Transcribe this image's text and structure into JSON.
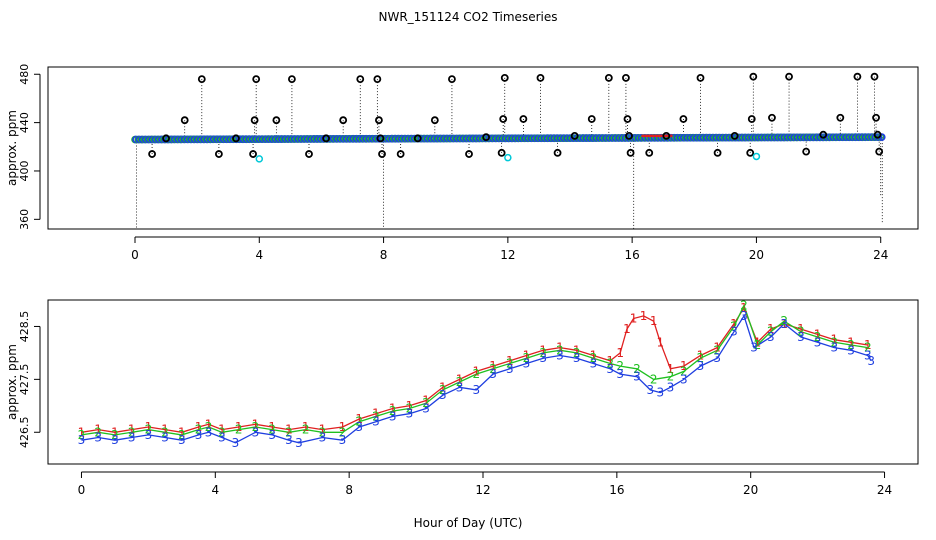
{
  "chart_data": [
    {
      "type": "scatter",
      "panel": "top",
      "title": "NWR_151124  CO2 Timeseries",
      "ylabel": "approx. ppm",
      "xlim": [
        -2.8,
        25.2
      ],
      "ylim": [
        352,
        486
      ],
      "xticks": [
        0,
        4,
        8,
        12,
        16,
        20,
        24
      ],
      "yticks": [
        360,
        400,
        440,
        480
      ],
      "baseline": {
        "t0": 0,
        "t1": 24,
        "v0": 426,
        "v1": 428
      },
      "spikes": [
        {
          "t": 0.55,
          "v": 414
        },
        {
          "t": 1.0,
          "v": 427
        },
        {
          "t": 1.6,
          "v": 442
        },
        {
          "t": 2.15,
          "v": 476
        },
        {
          "t": 2.7,
          "v": 414
        },
        {
          "t": 3.25,
          "v": 427
        },
        {
          "t": 3.8,
          "v": 414
        },
        {
          "t": 3.85,
          "v": 442
        },
        {
          "t": 3.9,
          "v": 476
        },
        {
          "t": 4.55,
          "v": 442
        },
        {
          "t": 5.05,
          "v": 476
        },
        {
          "t": 5.6,
          "v": 414
        },
        {
          "t": 6.15,
          "v": 427
        },
        {
          "t": 6.7,
          "v": 442
        },
        {
          "t": 7.25,
          "v": 476
        },
        {
          "t": 7.8,
          "v": 476
        },
        {
          "t": 7.85,
          "v": 442
        },
        {
          "t": 7.9,
          "v": 427
        },
        {
          "t": 7.95,
          "v": 414
        },
        {
          "t": 8.55,
          "v": 414
        },
        {
          "t": 9.1,
          "v": 427
        },
        {
          "t": 9.65,
          "v": 442
        },
        {
          "t": 10.2,
          "v": 476
        },
        {
          "t": 10.75,
          "v": 414
        },
        {
          "t": 11.3,
          "v": 428
        },
        {
          "t": 11.8,
          "v": 415
        },
        {
          "t": 11.85,
          "v": 443
        },
        {
          "t": 11.9,
          "v": 477
        },
        {
          "t": 12.5,
          "v": 443
        },
        {
          "t": 13.05,
          "v": 477
        },
        {
          "t": 13.6,
          "v": 415
        },
        {
          "t": 14.15,
          "v": 429
        },
        {
          "t": 14.7,
          "v": 443
        },
        {
          "t": 15.25,
          "v": 477
        },
        {
          "t": 15.8,
          "v": 477
        },
        {
          "t": 15.85,
          "v": 443
        },
        {
          "t": 15.9,
          "v": 429
        },
        {
          "t": 15.95,
          "v": 415
        },
        {
          "t": 16.55,
          "v": 415
        },
        {
          "t": 17.1,
          "v": 429
        },
        {
          "t": 17.65,
          "v": 443
        },
        {
          "t": 18.2,
          "v": 477
        },
        {
          "t": 18.75,
          "v": 415
        },
        {
          "t": 19.3,
          "v": 429
        },
        {
          "t": 19.8,
          "v": 415
        },
        {
          "t": 19.85,
          "v": 443
        },
        {
          "t": 19.9,
          "v": 478
        },
        {
          "t": 20.5,
          "v": 444
        },
        {
          "t": 21.05,
          "v": 478
        },
        {
          "t": 21.6,
          "v": 416
        },
        {
          "t": 22.15,
          "v": 430
        },
        {
          "t": 22.7,
          "v": 444
        },
        {
          "t": 23.25,
          "v": 478
        },
        {
          "t": 23.8,
          "v": 478
        },
        {
          "t": 23.85,
          "v": 444
        },
        {
          "t": 23.9,
          "v": 430
        },
        {
          "t": 23.95,
          "v": 416
        }
      ],
      "dip_lines": [
        {
          "t": 0.05,
          "v": 352
        },
        {
          "t": 8.0,
          "v": 352
        },
        {
          "t": 16.05,
          "v": 352
        },
        {
          "t": 24.05,
          "v": 356
        },
        {
          "t": 24.0,
          "v": 380
        }
      ],
      "cyan_points": [
        {
          "t": 4.0,
          "v": 410
        },
        {
          "t": 12.0,
          "v": 411
        },
        {
          "t": 20.0,
          "v": 412
        }
      ],
      "red_segment": {
        "t0": 16.3,
        "t1": 17.3,
        "v": 429
      },
      "colors": {
        "baseline": "#1f3fe0",
        "green": "#20c020",
        "red": "#e02020",
        "spikes": "#000000",
        "cyan": "#00c8d8"
      }
    },
    {
      "type": "line",
      "panel": "bottom",
      "ylabel": "approx. ppm",
      "xlabel": "Hour of Day (UTC)",
      "xlim": [
        -1.0,
        25.0
      ],
      "ylim": [
        425.9,
        429.0
      ],
      "xticks": [
        0,
        4,
        8,
        12,
        16,
        20,
        24
      ],
      "yticks": [
        426.5,
        427.5,
        428.5
      ],
      "series": [
        {
          "name": "1",
          "color": "#e02020",
          "markers": [
            {
              "t": 0,
              "v": 426.5
            },
            {
              "t": 0.5,
              "v": 426.55
            },
            {
              "t": 1,
              "v": 426.5
            },
            {
              "t": 1.5,
              "v": 426.55
            },
            {
              "t": 2,
              "v": 426.6
            },
            {
              "t": 2.5,
              "v": 426.55
            },
            {
              "t": 3,
              "v": 426.5
            },
            {
              "t": 3.5,
              "v": 426.6
            },
            {
              "t": 3.8,
              "v": 426.65
            },
            {
              "t": 4.2,
              "v": 426.55
            },
            {
              "t": 4.7,
              "v": 426.6
            },
            {
              "t": 5.2,
              "v": 426.65
            },
            {
              "t": 5.7,
              "v": 426.6
            },
            {
              "t": 6.2,
              "v": 426.55
            },
            {
              "t": 6.7,
              "v": 426.6
            },
            {
              "t": 7.2,
              "v": 426.55
            },
            {
              "t": 7.8,
              "v": 426.6
            },
            {
              "t": 8.3,
              "v": 426.75
            },
            {
              "t": 8.8,
              "v": 426.85
            },
            {
              "t": 9.3,
              "v": 426.95
            },
            {
              "t": 9.8,
              "v": 427.0
            },
            {
              "t": 10.3,
              "v": 427.1
            },
            {
              "t": 10.8,
              "v": 427.35
            },
            {
              "t": 11.3,
              "v": 427.5
            },
            {
              "t": 11.8,
              "v": 427.65
            },
            {
              "t": 12.3,
              "v": 427.75
            },
            {
              "t": 12.8,
              "v": 427.85
            },
            {
              "t": 13.3,
              "v": 427.95
            },
            {
              "t": 13.8,
              "v": 428.05
            },
            {
              "t": 14.3,
              "v": 428.1
            },
            {
              "t": 14.8,
              "v": 428.05
            },
            {
              "t": 15.3,
              "v": 427.95
            },
            {
              "t": 15.8,
              "v": 427.85
            },
            {
              "t": 16.1,
              "v": 428.0
            },
            {
              "t": 16.3,
              "v": 428.45
            },
            {
              "t": 16.5,
              "v": 428.65
            },
            {
              "t": 16.8,
              "v": 428.7
            },
            {
              "t": 17.1,
              "v": 428.6
            },
            {
              "t": 17.3,
              "v": 428.2
            },
            {
              "t": 17.6,
              "v": 427.7
            },
            {
              "t": 18.0,
              "v": 427.75
            },
            {
              "t": 18.5,
              "v": 427.95
            },
            {
              "t": 19.0,
              "v": 428.1
            },
            {
              "t": 19.5,
              "v": 428.55
            },
            {
              "t": 19.8,
              "v": 428.85
            },
            {
              "t": 20.2,
              "v": 428.2
            },
            {
              "t": 20.6,
              "v": 428.45
            },
            {
              "t": 21.0,
              "v": 428.55
            },
            {
              "t": 21.5,
              "v": 428.45
            },
            {
              "t": 22.0,
              "v": 428.35
            },
            {
              "t": 22.5,
              "v": 428.25
            },
            {
              "t": 23.0,
              "v": 428.2
            },
            {
              "t": 23.5,
              "v": 428.15
            }
          ]
        },
        {
          "name": "2",
          "color": "#20c020",
          "markers": [
            {
              "t": 0,
              "v": 426.45
            },
            {
              "t": 0.5,
              "v": 426.5
            },
            {
              "t": 1,
              "v": 426.45
            },
            {
              "t": 1.5,
              "v": 426.5
            },
            {
              "t": 2,
              "v": 426.55
            },
            {
              "t": 2.5,
              "v": 426.5
            },
            {
              "t": 3,
              "v": 426.45
            },
            {
              "t": 3.5,
              "v": 426.55
            },
            {
              "t": 3.8,
              "v": 426.6
            },
            {
              "t": 4.2,
              "v": 426.5
            },
            {
              "t": 4.7,
              "v": 426.55
            },
            {
              "t": 5.2,
              "v": 426.6
            },
            {
              "t": 5.7,
              "v": 426.55
            },
            {
              "t": 6.2,
              "v": 426.5
            },
            {
              "t": 6.7,
              "v": 426.55
            },
            {
              "t": 7.2,
              "v": 426.5
            },
            {
              "t": 7.8,
              "v": 426.5
            },
            {
              "t": 8.3,
              "v": 426.7
            },
            {
              "t": 8.8,
              "v": 426.8
            },
            {
              "t": 9.3,
              "v": 426.9
            },
            {
              "t": 9.8,
              "v": 426.95
            },
            {
              "t": 10.3,
              "v": 427.05
            },
            {
              "t": 10.8,
              "v": 427.3
            },
            {
              "t": 11.3,
              "v": 427.45
            },
            {
              "t": 11.8,
              "v": 427.6
            },
            {
              "t": 12.3,
              "v": 427.7
            },
            {
              "t": 12.8,
              "v": 427.8
            },
            {
              "t": 13.3,
              "v": 427.9
            },
            {
              "t": 13.8,
              "v": 428.0
            },
            {
              "t": 14.3,
              "v": 428.05
            },
            {
              "t": 14.8,
              "v": 428.0
            },
            {
              "t": 15.3,
              "v": 427.9
            },
            {
              "t": 15.8,
              "v": 427.8
            },
            {
              "t": 16.1,
              "v": 427.75
            },
            {
              "t": 16.6,
              "v": 427.7
            },
            {
              "t": 17.1,
              "v": 427.5
            },
            {
              "t": 17.6,
              "v": 427.55
            },
            {
              "t": 18.0,
              "v": 427.65
            },
            {
              "t": 18.5,
              "v": 427.9
            },
            {
              "t": 19.0,
              "v": 428.05
            },
            {
              "t": 19.5,
              "v": 428.5
            },
            {
              "t": 19.8,
              "v": 428.9
            },
            {
              "t": 20.2,
              "v": 428.15
            },
            {
              "t": 20.6,
              "v": 428.4
            },
            {
              "t": 21.0,
              "v": 428.6
            },
            {
              "t": 21.5,
              "v": 428.4
            },
            {
              "t": 22.0,
              "v": 428.3
            },
            {
              "t": 22.5,
              "v": 428.2
            },
            {
              "t": 23.0,
              "v": 428.15
            },
            {
              "t": 23.5,
              "v": 428.1
            }
          ]
        },
        {
          "name": "3",
          "color": "#1f3fe0",
          "markers": [
            {
              "t": 0,
              "v": 426.35
            },
            {
              "t": 0.5,
              "v": 426.4
            },
            {
              "t": 1,
              "v": 426.35
            },
            {
              "t": 1.5,
              "v": 426.4
            },
            {
              "t": 2,
              "v": 426.45
            },
            {
              "t": 2.5,
              "v": 426.4
            },
            {
              "t": 3,
              "v": 426.35
            },
            {
              "t": 3.5,
              "v": 426.45
            },
            {
              "t": 3.8,
              "v": 426.5
            },
            {
              "t": 4.2,
              "v": 426.4
            },
            {
              "t": 4.6,
              "v": 426.3
            },
            {
              "t": 5.2,
              "v": 426.5
            },
            {
              "t": 5.7,
              "v": 426.45
            },
            {
              "t": 6.2,
              "v": 426.35
            },
            {
              "t": 6.5,
              "v": 426.3
            },
            {
              "t": 7.2,
              "v": 426.4
            },
            {
              "t": 7.8,
              "v": 426.35
            },
            {
              "t": 8.3,
              "v": 426.6
            },
            {
              "t": 8.8,
              "v": 426.7
            },
            {
              "t": 9.3,
              "v": 426.8
            },
            {
              "t": 9.8,
              "v": 426.85
            },
            {
              "t": 10.3,
              "v": 426.95
            },
            {
              "t": 10.8,
              "v": 427.2
            },
            {
              "t": 11.3,
              "v": 427.35
            },
            {
              "t": 11.8,
              "v": 427.3
            },
            {
              "t": 12.3,
              "v": 427.6
            },
            {
              "t": 12.8,
              "v": 427.7
            },
            {
              "t": 13.3,
              "v": 427.8
            },
            {
              "t": 13.8,
              "v": 427.9
            },
            {
              "t": 14.3,
              "v": 427.95
            },
            {
              "t": 14.8,
              "v": 427.9
            },
            {
              "t": 15.3,
              "v": 427.8
            },
            {
              "t": 15.8,
              "v": 427.7
            },
            {
              "t": 16.1,
              "v": 427.6
            },
            {
              "t": 16.6,
              "v": 427.55
            },
            {
              "t": 17.0,
              "v": 427.3
            },
            {
              "t": 17.3,
              "v": 427.25
            },
            {
              "t": 17.6,
              "v": 427.35
            },
            {
              "t": 18.0,
              "v": 427.5
            },
            {
              "t": 18.5,
              "v": 427.75
            },
            {
              "t": 19.0,
              "v": 427.9
            },
            {
              "t": 19.5,
              "v": 428.4
            },
            {
              "t": 19.8,
              "v": 428.7
            },
            {
              "t": 20.1,
              "v": 428.1
            },
            {
              "t": 20.6,
              "v": 428.3
            },
            {
              "t": 21.0,
              "v": 428.55
            },
            {
              "t": 21.5,
              "v": 428.3
            },
            {
              "t": 22.0,
              "v": 428.2
            },
            {
              "t": 22.5,
              "v": 428.1
            },
            {
              "t": 23.0,
              "v": 428.05
            },
            {
              "t": 23.5,
              "v": 427.95
            },
            {
              "t": 23.6,
              "v": 427.85
            }
          ]
        }
      ]
    }
  ]
}
